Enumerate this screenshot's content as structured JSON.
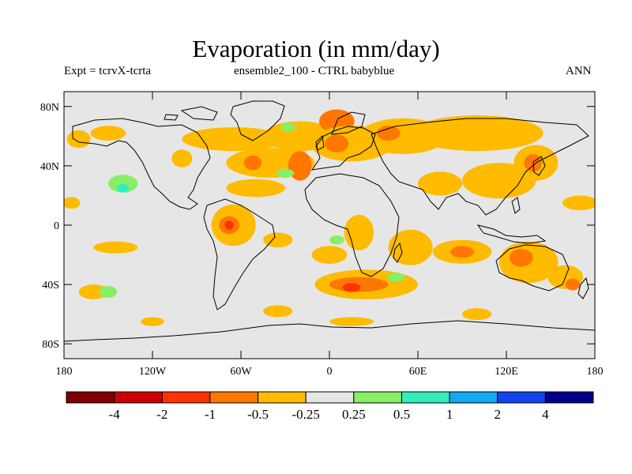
{
  "title": "Evaporation (in mm/day)",
  "subtitle_left": "Expt = tcrvX-tcrta",
  "subtitle_center": "ensemble2_100 - CTRL babyblue",
  "subtitle_right": "ANN",
  "background_color": "#e6e6e6",
  "coastline_color": "#000000",
  "y_axis": {
    "range": [
      -90,
      90
    ],
    "ticks": [
      {
        "value": 80,
        "label": "80N"
      },
      {
        "value": 40,
        "label": "40N"
      },
      {
        "value": 0,
        "label": "0"
      },
      {
        "value": -40,
        "label": "40S"
      },
      {
        "value": -80,
        "label": "80S"
      }
    ]
  },
  "x_axis": {
    "range": [
      -180,
      180
    ],
    "ticks": [
      {
        "value": -180,
        "label": "180"
      },
      {
        "value": -120,
        "label": "120W"
      },
      {
        "value": -60,
        "label": "60W"
      },
      {
        "value": 0,
        "label": "0"
      },
      {
        "value": 60,
        "label": "60E"
      },
      {
        "value": 120,
        "label": "120E"
      },
      {
        "value": 180,
        "label": "180"
      }
    ]
  },
  "colorbar": {
    "colors": [
      "#7f0000",
      "#cc0000",
      "#ff3300",
      "#ff7700",
      "#ffbb00",
      "#e6e6e6",
      "#88ee66",
      "#33eebb",
      "#11aaee",
      "#1144ee",
      "#000088"
    ],
    "labels": [
      "-4",
      "-2",
      "-1",
      "-0.5",
      "-0.25",
      "0.25",
      "0.5",
      "1",
      "2",
      "4"
    ]
  },
  "anomalies": [
    {
      "lon": -170,
      "lat": 58,
      "rx": 8,
      "ry": 6,
      "level": "-0.25"
    },
    {
      "lon": -150,
      "lat": 62,
      "rx": 12,
      "ry": 5,
      "level": "-0.25"
    },
    {
      "lon": -175,
      "lat": 15,
      "rx": 6,
      "ry": 4,
      "level": "-0.25"
    },
    {
      "lon": -140,
      "lat": 28,
      "rx": 10,
      "ry": 6,
      "level": "0.5"
    },
    {
      "lon": -140,
      "lat": 25,
      "rx": 4,
      "ry": 3,
      "level": "1"
    },
    {
      "lon": -100,
      "lat": 45,
      "rx": 7,
      "ry": 6,
      "level": "-0.25"
    },
    {
      "lon": -65,
      "lat": 58,
      "rx": 35,
      "ry": 8,
      "level": "-0.25"
    },
    {
      "lon": -40,
      "lat": 42,
      "rx": 30,
      "ry": 10,
      "level": "-0.25"
    },
    {
      "lon": -52,
      "lat": 42,
      "rx": 6,
      "ry": 5,
      "level": "-0.5"
    },
    {
      "lon": -20,
      "lat": 40,
      "rx": 8,
      "ry": 10,
      "level": "-0.5"
    },
    {
      "lon": -50,
      "lat": 25,
      "rx": 20,
      "ry": 6,
      "level": "-0.25"
    },
    {
      "lon": -20,
      "lat": 60,
      "rx": 25,
      "ry": 10,
      "level": "-0.25"
    },
    {
      "lon": -28,
      "lat": 66,
      "rx": 5,
      "ry": 3,
      "level": "0.5"
    },
    {
      "lon": 5,
      "lat": 70,
      "rx": 12,
      "ry": 8,
      "level": "-0.5"
    },
    {
      "lon": 15,
      "lat": 55,
      "rx": 28,
      "ry": 12,
      "level": "-0.25"
    },
    {
      "lon": 5,
      "lat": 55,
      "rx": 8,
      "ry": 6,
      "level": "-0.5"
    },
    {
      "lon": 50,
      "lat": 60,
      "rx": 30,
      "ry": 12,
      "level": "-0.25"
    },
    {
      "lon": 40,
      "lat": 62,
      "rx": 8,
      "ry": 5,
      "level": "-0.5"
    },
    {
      "lon": 100,
      "lat": 62,
      "rx": 45,
      "ry": 12,
      "level": "-0.25"
    },
    {
      "lon": 140,
      "lat": 42,
      "rx": 15,
      "ry": 12,
      "level": "-0.25"
    },
    {
      "lon": 138,
      "lat": 42,
      "rx": 6,
      "ry": 6,
      "level": "-0.5"
    },
    {
      "lon": 115,
      "lat": 30,
      "rx": 25,
      "ry": 12,
      "level": "-0.25"
    },
    {
      "lon": 75,
      "lat": 28,
      "rx": 15,
      "ry": 8,
      "level": "-0.25"
    },
    {
      "lon": 170,
      "lat": 15,
      "rx": 12,
      "ry": 5,
      "level": "-0.25"
    },
    {
      "lon": -65,
      "lat": 0,
      "rx": 15,
      "ry": 14,
      "level": "-0.25"
    },
    {
      "lon": -68,
      "lat": 0,
      "rx": 7,
      "ry": 6,
      "level": "-0.5"
    },
    {
      "lon": -68,
      "lat": 0,
      "rx": 3,
      "ry": 3,
      "level": "-1"
    },
    {
      "lon": -35,
      "lat": -10,
      "rx": 10,
      "ry": 5,
      "level": "-0.25"
    },
    {
      "lon": -30,
      "lat": 35,
      "rx": 6,
      "ry": 3,
      "level": "0.5"
    },
    {
      "lon": -145,
      "lat": -15,
      "rx": 15,
      "ry": 4,
      "level": "-0.25"
    },
    {
      "lon": -160,
      "lat": -45,
      "rx": 10,
      "ry": 5,
      "level": "-0.25"
    },
    {
      "lon": -150,
      "lat": -45,
      "rx": 6,
      "ry": 4,
      "level": "0.5"
    },
    {
      "lon": -120,
      "lat": -65,
      "rx": 8,
      "ry": 3,
      "level": "-0.25"
    },
    {
      "lon": -35,
      "lat": -58,
      "rx": 10,
      "ry": 4,
      "level": "-0.25"
    },
    {
      "lon": 0,
      "lat": -20,
      "rx": 12,
      "ry": 6,
      "level": "-0.25"
    },
    {
      "lon": 5,
      "lat": -10,
      "rx": 5,
      "ry": 3,
      "level": "0.5"
    },
    {
      "lon": 20,
      "lat": -5,
      "rx": 10,
      "ry": 12,
      "level": "-0.25"
    },
    {
      "lon": 25,
      "lat": -40,
      "rx": 35,
      "ry": 10,
      "level": "-0.25"
    },
    {
      "lon": 20,
      "lat": -40,
      "rx": 20,
      "ry": 5,
      "level": "-0.5"
    },
    {
      "lon": 15,
      "lat": -42,
      "rx": 6,
      "ry": 3,
      "level": "-1"
    },
    {
      "lon": 55,
      "lat": -15,
      "rx": 15,
      "ry": 12,
      "level": "-0.25"
    },
    {
      "lon": 90,
      "lat": -18,
      "rx": 20,
      "ry": 8,
      "level": "-0.25"
    },
    {
      "lon": 90,
      "lat": -18,
      "rx": 8,
      "ry": 4,
      "level": "-0.5"
    },
    {
      "lon": 135,
      "lat": -25,
      "rx": 20,
      "ry": 14,
      "level": "-0.25"
    },
    {
      "lon": 130,
      "lat": -22,
      "rx": 8,
      "ry": 6,
      "level": "-0.5"
    },
    {
      "lon": 160,
      "lat": -35,
      "rx": 12,
      "ry": 8,
      "level": "-0.25"
    },
    {
      "lon": 165,
      "lat": -40,
      "rx": 5,
      "ry": 4,
      "level": "-0.5"
    },
    {
      "lon": 100,
      "lat": -60,
      "rx": 10,
      "ry": 4,
      "level": "-0.25"
    },
    {
      "lon": 15,
      "lat": -65,
      "rx": 15,
      "ry": 3,
      "level": "-0.25"
    },
    {
      "lon": 45,
      "lat": -35,
      "rx": 6,
      "ry": 3,
      "level": "0.5"
    }
  ]
}
